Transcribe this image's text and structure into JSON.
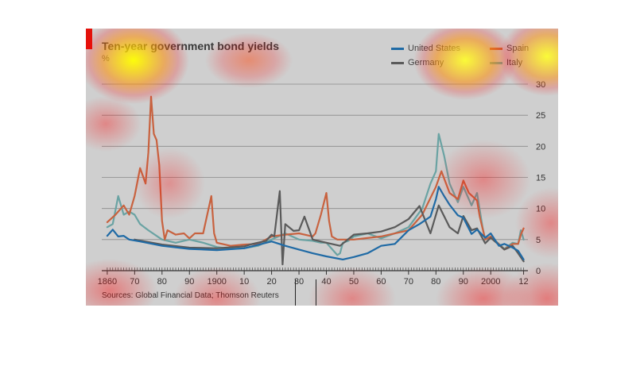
{
  "chart_data": {
    "type": "line",
    "title": "Ten-year government bond yields",
    "unit": "%",
    "source": "Sources: Global Financial Data; Thomson Reuters",
    "ylim": [
      0,
      30
    ],
    "yticks": [
      0,
      5,
      10,
      15,
      20,
      25,
      30
    ],
    "xlim": [
      1858,
      2013
    ],
    "xticks": [
      {
        "year": 1860,
        "label": "1860"
      },
      {
        "year": 1870,
        "label": "70"
      },
      {
        "year": 1880,
        "label": "80"
      },
      {
        "year": 1890,
        "label": "90"
      },
      {
        "year": 1900,
        "label": "1900"
      },
      {
        "year": 1910,
        "label": "10"
      },
      {
        "year": 1920,
        "label": "20"
      },
      {
        "year": 1930,
        "label": "30"
      },
      {
        "year": 1940,
        "label": "40"
      },
      {
        "year": 1950,
        "label": "50"
      },
      {
        "year": 1960,
        "label": "60"
      },
      {
        "year": 1970,
        "label": "70"
      },
      {
        "year": 1980,
        "label": "80"
      },
      {
        "year": 1990,
        "label": "90"
      },
      {
        "year": 2000,
        "label": "2000"
      },
      {
        "year": 2012,
        "label": "12"
      }
    ],
    "grid": true,
    "legend_position": "top-right",
    "series": [
      {
        "name": "United States",
        "color": "#1f6aa5",
        "x": [
          1860,
          1862,
          1864,
          1866,
          1868,
          1872,
          1880,
          1890,
          1900,
          1910,
          1920,
          1925,
          1930,
          1935,
          1940,
          1946,
          1950,
          1955,
          1960,
          1965,
          1970,
          1974,
          1978,
          1980,
          1981,
          1983,
          1985,
          1988,
          1990,
          1993,
          1995,
          1998,
          2000,
          2003,
          2005,
          2008,
          2010,
          2012
        ],
        "y": [
          5.6,
          6.6,
          5.5,
          5.6,
          5.0,
          4.7,
          4.0,
          3.5,
          3.3,
          3.6,
          4.7,
          4.0,
          3.4,
          2.8,
          2.3,
          1.8,
          2.2,
          2.8,
          4.0,
          4.3,
          6.5,
          7.5,
          8.7,
          11.5,
          13.5,
          12.0,
          10.6,
          8.9,
          8.5,
          5.9,
          6.6,
          5.3,
          6.0,
          4.0,
          4.3,
          3.7,
          3.2,
          1.8
        ]
      },
      {
        "name": "Germany",
        "color": "#5a5a5a",
        "x": [
          1870,
          1880,
          1890,
          1900,
          1910,
          1913,
          1918,
          1920,
          1921,
          1923,
          1924,
          1925,
          1928,
          1930,
          1932,
          1935,
          1940,
          1945,
          1950,
          1955,
          1960,
          1965,
          1970,
          1974,
          1978,
          1981,
          1985,
          1988,
          1990,
          1993,
          1995,
          1998,
          2000,
          2005,
          2008,
          2010,
          2012
        ],
        "y": [
          5.0,
          4.2,
          3.7,
          3.6,
          3.9,
          4.3,
          4.8,
          5.8,
          5.5,
          12.8,
          1.0,
          7.5,
          6.4,
          6.5,
          8.7,
          5.0,
          4.5,
          4.0,
          5.8,
          6.0,
          6.3,
          7.0,
          8.3,
          10.4,
          6.0,
          10.5,
          7.0,
          6.0,
          8.8,
          6.5,
          6.8,
          4.4,
          5.3,
          3.4,
          4.0,
          2.8,
          1.5
        ]
      },
      {
        "name": "Spain",
        "color": "#c8623f",
        "x": [
          1860,
          1863,
          1866,
          1868,
          1870,
          1872,
          1874,
          1875,
          1876,
          1877,
          1878,
          1879,
          1880,
          1881,
          1882,
          1885,
          1888,
          1890,
          1892,
          1895,
          1898,
          1899,
          1900,
          1905,
          1910,
          1915,
          1920,
          1925,
          1930,
          1935,
          1936,
          1938,
          1940,
          1941,
          1942,
          1944,
          1950,
          1960,
          1970,
          1975,
          1980,
          1982,
          1985,
          1988,
          1990,
          1992,
          1995,
          1996,
          1998,
          2000,
          2005,
          2008,
          2010,
          2011,
          2012
        ],
        "y": [
          7.8,
          9.0,
          10.5,
          9.0,
          12.0,
          16.5,
          14.0,
          19.0,
          28.0,
          22.0,
          21.0,
          17.0,
          8.0,
          5.0,
          6.5,
          5.8,
          6.0,
          5.2,
          6.0,
          6.0,
          12.0,
          6.0,
          4.5,
          4.0,
          4.2,
          4.3,
          5.5,
          5.8,
          6.0,
          5.5,
          6.0,
          9.0,
          12.5,
          8.0,
          5.5,
          5.0,
          5.0,
          5.5,
          6.5,
          9.0,
          13.5,
          16.0,
          12.5,
          11.5,
          14.5,
          12.5,
          11.3,
          8.7,
          5.0,
          5.5,
          3.4,
          4.3,
          4.3,
          5.8,
          6.8
        ]
      },
      {
        "name": "Italy",
        "color": "#6aa3a3",
        "x": [
          1860,
          1862,
          1864,
          1866,
          1868,
          1870,
          1872,
          1875,
          1880,
          1885,
          1890,
          1895,
          1900,
          1905,
          1910,
          1915,
          1920,
          1925,
          1930,
          1935,
          1938,
          1940,
          1944,
          1945,
          1946,
          1948,
          1950,
          1955,
          1960,
          1965,
          1970,
          1975,
          1978,
          1980,
          1981,
          1983,
          1985,
          1988,
          1990,
          1993,
          1995,
          1997,
          1998,
          2000,
          2005,
          2008,
          2010,
          2011,
          2012
        ],
        "y": [
          7.0,
          7.5,
          12.0,
          9.0,
          9.5,
          9.0,
          7.5,
          6.5,
          5.0,
          4.5,
          5.0,
          4.5,
          3.8,
          3.5,
          3.6,
          4.0,
          5.0,
          6.0,
          5.0,
          4.8,
          4.5,
          4.5,
          2.5,
          2.8,
          4.5,
          4.8,
          5.5,
          6.0,
          5.2,
          6.0,
          7.0,
          10.0,
          14.0,
          16.0,
          22.0,
          18.5,
          14.0,
          11.0,
          13.5,
          10.5,
          12.5,
          7.0,
          5.0,
          5.5,
          3.5,
          4.5,
          4.3,
          6.5,
          5.0
        ]
      }
    ]
  }
}
